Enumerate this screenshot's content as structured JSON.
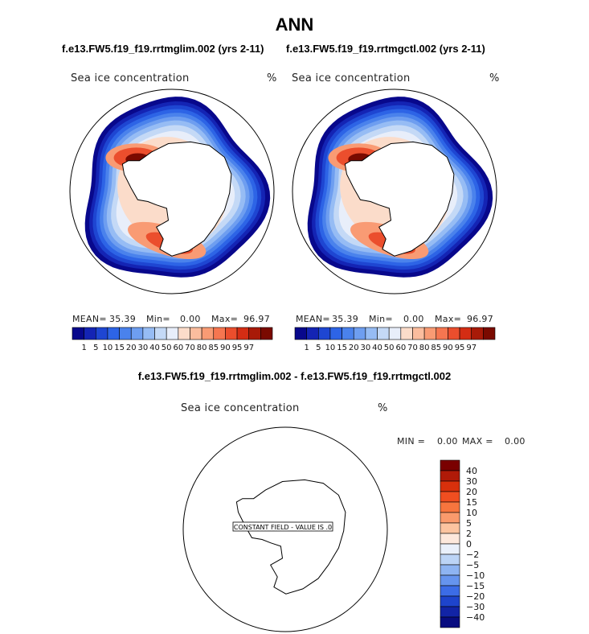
{
  "page": {
    "title": "ANN",
    "case1_title": "f.e13.FW5.f19_f19.rrtmglim.002 (yrs 2-11)",
    "case2_title": "f.e13.FW5.f19_f19.rrtmgctl.002 (yrs 2-11)",
    "diff_title": "f.e13.FW5.f19_f19.rrtmglim.002 - f.e13.FW5.f19_f19.rrtmgctl.002"
  },
  "chart_data": [
    {
      "type": "heatmap",
      "projection": "polar-stereographic-south",
      "field": "Sea ice concentration",
      "units": "%",
      "stats": {
        "mean_label": "MEAN=",
        "mean": "35.39",
        "min_label": "Min=",
        "min": "0.00",
        "max_label": "Max=",
        "max": "96.97"
      },
      "levels": [
        "1",
        "5",
        "10",
        "15",
        "20",
        "30",
        "40",
        "50",
        "60",
        "70",
        "80",
        "85",
        "90",
        "95",
        "97"
      ],
      "colors": [
        "#08088c",
        "#1424b4",
        "#1e46d2",
        "#2d64e6",
        "#4a82ec",
        "#6e9ef0",
        "#96bcf4",
        "#c4d9f6",
        "#e8eefa",
        "#fbdcca",
        "#fbbd9e",
        "#f99b74",
        "#f67650",
        "#eb4e2d",
        "#d42d14",
        "#a81a08",
        "#7a0a00"
      ]
    },
    {
      "type": "heatmap",
      "projection": "polar-stereographic-south",
      "field": "Sea ice concentration",
      "units": "%",
      "stats": {
        "mean_label": "MEAN=",
        "mean": "35.39",
        "min_label": "Min=",
        "min": "0.00",
        "max_label": "Max=",
        "max": "96.97"
      },
      "levels": [
        "1",
        "5",
        "10",
        "15",
        "20",
        "30",
        "40",
        "50",
        "60",
        "70",
        "80",
        "85",
        "90",
        "95",
        "97"
      ],
      "colors": [
        "#08088c",
        "#1424b4",
        "#1e46d2",
        "#2d64e6",
        "#4a82ec",
        "#6e9ef0",
        "#96bcf4",
        "#c4d9f6",
        "#e8eefa",
        "#fbdcca",
        "#fbbd9e",
        "#f99b74",
        "#f67650",
        "#eb4e2d",
        "#d42d14",
        "#a81a08",
        "#7a0a00"
      ]
    },
    {
      "type": "heatmap",
      "projection": "polar-stereographic-south",
      "field": "Sea ice concentration",
      "units": "%",
      "stats": {
        "min_label": "MIN =",
        "min": "0.00",
        "max_label": "MAX =",
        "max": "0.00"
      },
      "note": "CONSTANT FIELD - VALUE IS .0",
      "levels": [
        "40",
        "30",
        "20",
        "15",
        "10",
        "5",
        "2",
        "0",
        "−2",
        "−5",
        "−10",
        "−15",
        "−20",
        "−30",
        "−40"
      ],
      "colors": [
        "#7a0000",
        "#b01a08",
        "#d8300c",
        "#f04e20",
        "#f7753e",
        "#fa9a6c",
        "#fcc4a0",
        "#fde8dc",
        "#eaf0fb",
        "#bcd4f6",
        "#8eb4f2",
        "#6694ee",
        "#3c6ce6",
        "#1e44cc",
        "#1224a6",
        "#080c80"
      ]
    }
  ]
}
